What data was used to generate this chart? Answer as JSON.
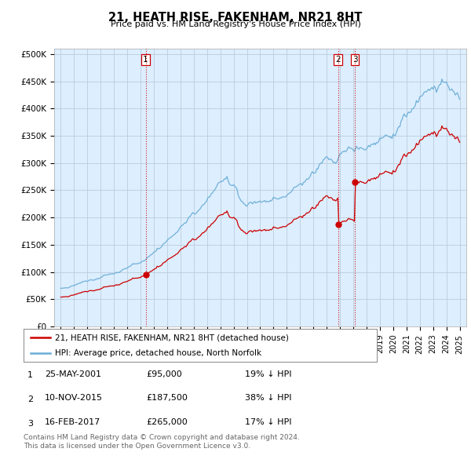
{
  "title": "21, HEATH RISE, FAKENHAM, NR21 8HT",
  "subtitle": "Price paid vs. HM Land Registry's House Price Index (HPI)",
  "yticks": [
    0,
    50000,
    100000,
    150000,
    200000,
    250000,
    300000,
    350000,
    400000,
    450000,
    500000
  ],
  "ytick_labels": [
    "£0",
    "£50K",
    "£100K",
    "£150K",
    "£200K",
    "£250K",
    "£300K",
    "£350K",
    "£400K",
    "£450K",
    "£500K"
  ],
  "xlim_start": 1994.5,
  "xlim_end": 2025.5,
  "ylim_min": 0,
  "ylim_max": 510000,
  "hpi_color": "#6baed6",
  "price_color": "#cc0000",
  "vline_color": "#cc0000",
  "chart_bg": "#ddeeff",
  "transactions": [
    {
      "date_label": "25-MAY-2001",
      "year": 2001.38,
      "price": 95000,
      "note": "19% ↓ HPI",
      "num": 1
    },
    {
      "date_label": "10-NOV-2015",
      "year": 2015.85,
      "price": 187500,
      "note": "38% ↓ HPI",
      "num": 2
    },
    {
      "date_label": "16-FEB-2017",
      "year": 2017.12,
      "price": 265000,
      "note": "17% ↓ HPI",
      "num": 3
    }
  ],
  "legend_entries": [
    "21, HEATH RISE, FAKENHAM, NR21 8HT (detached house)",
    "HPI: Average price, detached house, North Norfolk"
  ],
  "footer_lines": [
    "Contains HM Land Registry data © Crown copyright and database right 2024.",
    "This data is licensed under the Open Government Licence v3.0."
  ],
  "background_color": "#ffffff",
  "grid_color": "#bbccdd"
}
